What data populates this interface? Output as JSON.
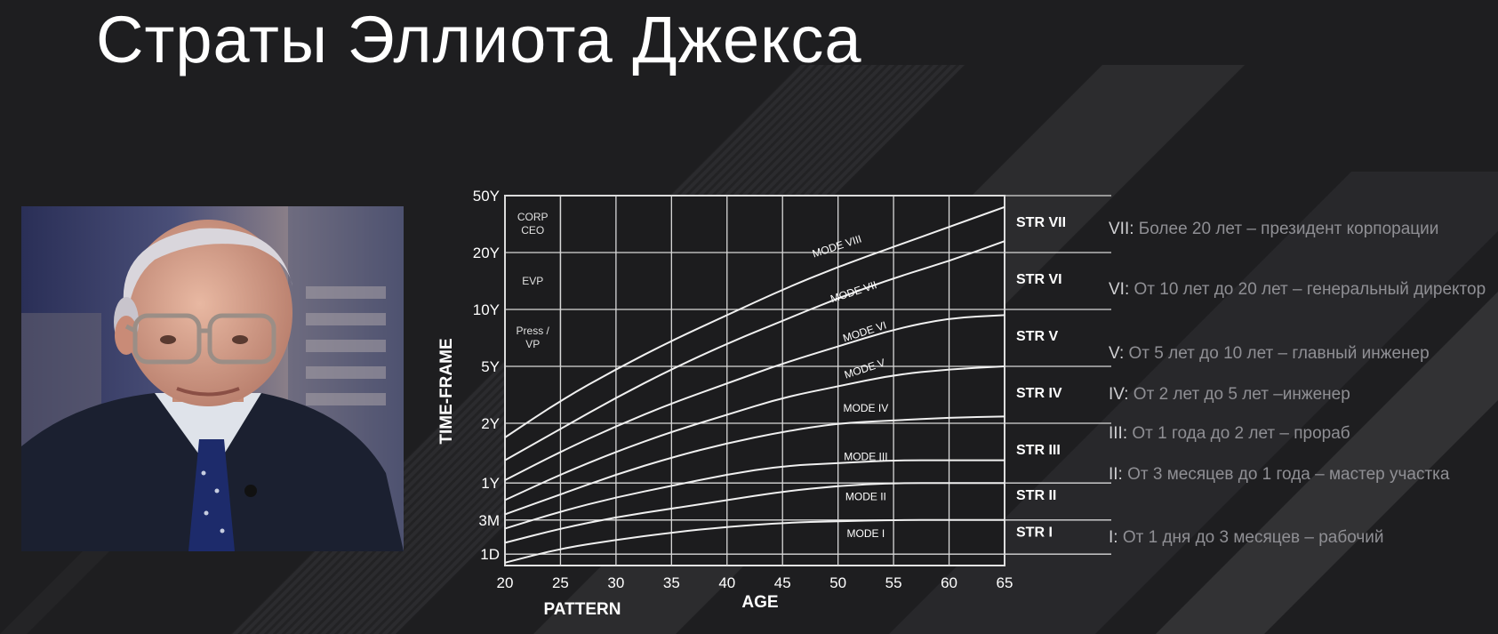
{
  "slide": {
    "title": "Страты Эллиота Джекса"
  },
  "photo": {
    "subject": "portrait-of-elliott-jaques"
  },
  "chart_data": {
    "type": "line",
    "xlabel": "AGE",
    "ylabel": "TIME-FRAME",
    "pattern_label": "PATTERN",
    "x_ticks": [
      20,
      25,
      30,
      35,
      40,
      45,
      50,
      55,
      60,
      65
    ],
    "xlim": [
      20,
      65
    ],
    "y_ticks": [
      {
        "label": "1D",
        "level": 0
      },
      {
        "label": "3M",
        "level": 0.6
      },
      {
        "label": "1Y",
        "level": 1.25
      },
      {
        "label": "2Y",
        "level": 2.3
      },
      {
        "label": "5Y",
        "level": 3.3
      },
      {
        "label": "10Y",
        "level": 4.3
      },
      {
        "label": "20Y",
        "level": 5.3
      },
      {
        "label": "50Y",
        "level": 6.3
      }
    ],
    "ylim": [
      -0.2,
      6.3
    ],
    "grid": true,
    "role_labels": [
      {
        "text": "CORP\nCEO",
        "level": 5.8
      },
      {
        "text": "EVP",
        "level": 4.8
      },
      {
        "text": "Press /\nVP",
        "level": 3.8
      }
    ],
    "strata": [
      {
        "label": "STR VII",
        "level": 5.85
      },
      {
        "label": "STR VI",
        "level": 4.85
      },
      {
        "label": "STR V",
        "level": 3.85
      },
      {
        "label": "STR IV",
        "level": 2.85
      },
      {
        "label": "STR III",
        "level": 1.85
      },
      {
        "label": "STR II",
        "level": 1.05
      },
      {
        "label": "STR I",
        "level": 0.4
      }
    ],
    "series": [
      {
        "name": "MODE VIII",
        "label_at": [
          50,
          5.35
        ],
        "x": [
          20,
          25,
          30,
          35,
          40,
          45,
          50,
          55,
          60,
          65
        ],
        "y": [
          2.05,
          2.7,
          3.25,
          3.75,
          4.2,
          4.65,
          5.05,
          5.4,
          5.75,
          6.1
        ]
      },
      {
        "name": "MODE VII",
        "label_at": [
          51.5,
          4.55
        ],
        "x": [
          20,
          25,
          30,
          35,
          40,
          45,
          50,
          55,
          60,
          65
        ],
        "y": [
          1.65,
          2.2,
          2.75,
          3.25,
          3.7,
          4.1,
          4.5,
          4.85,
          5.15,
          5.5
        ]
      },
      {
        "name": "MODE VI",
        "label_at": [
          52.5,
          3.85
        ],
        "x": [
          20,
          25,
          30,
          35,
          40,
          45,
          50,
          55,
          60,
          65
        ],
        "y": [
          1.3,
          1.8,
          2.25,
          2.65,
          3.0,
          3.35,
          3.65,
          3.95,
          4.15,
          4.2
        ]
      },
      {
        "name": "MODE V",
        "label_at": [
          52.5,
          3.2
        ],
        "x": [
          20,
          25,
          30,
          35,
          40,
          45,
          50,
          55,
          60,
          65
        ],
        "y": [
          0.95,
          1.4,
          1.8,
          2.15,
          2.45,
          2.75,
          2.95,
          3.15,
          3.25,
          3.3
        ]
      },
      {
        "name": "MODE IV",
        "label_at": [
          52.5,
          2.5
        ],
        "x": [
          20,
          25,
          30,
          35,
          40,
          45,
          50,
          55,
          60,
          65
        ],
        "y": [
          0.7,
          1.05,
          1.4,
          1.7,
          1.95,
          2.15,
          2.3,
          2.35,
          2.4,
          2.42
        ]
      },
      {
        "name": "MODE III",
        "label_at": [
          52.5,
          1.65
        ],
        "x": [
          20,
          25,
          30,
          35,
          40,
          45,
          50,
          55,
          60,
          65
        ],
        "y": [
          0.45,
          0.75,
          1.0,
          1.2,
          1.4,
          1.55,
          1.6,
          1.65,
          1.65,
          1.65
        ]
      },
      {
        "name": "MODE II",
        "label_at": [
          52.5,
          0.95
        ],
        "x": [
          20,
          25,
          30,
          35,
          40,
          45,
          50,
          55,
          60,
          65
        ],
        "y": [
          0.2,
          0.45,
          0.65,
          0.8,
          0.95,
          1.1,
          1.2,
          1.25,
          1.25,
          1.25
        ]
      },
      {
        "name": "MODE I",
        "label_at": [
          52.5,
          0.3
        ],
        "x": [
          20,
          25,
          30,
          35,
          40,
          45,
          50,
          55,
          60,
          65
        ],
        "y": [
          -0.15,
          0.1,
          0.25,
          0.38,
          0.48,
          0.55,
          0.58,
          0.6,
          0.6,
          0.6
        ]
      }
    ]
  },
  "legend": {
    "items": [
      {
        "key": "VII:",
        "text": " Более 20 лет – президент корпорации"
      },
      {
        "key": "VI:",
        "text": " От 10 лет до 20 лет – генеральный директор"
      },
      {
        "key": "V:",
        "text": " От 5 лет до 10 лет – главный инженер"
      },
      {
        "key": "IV:",
        "text": " От 2 лет до 5 лет –инженер"
      },
      {
        "key": "III:",
        "text": "  От 1 года до 2 лет – прораб"
      },
      {
        "key": "II:",
        "text": " От 3 месяцев до 1 года – мастер участка"
      },
      {
        "key": "I:",
        "text": " От 1 дня до 3 месяцев – рабочий"
      }
    ]
  },
  "colors": {
    "background": "#202022",
    "grid": "#d8d8d8",
    "text": "#ffffff",
    "legend_text": "#8f8f94"
  }
}
